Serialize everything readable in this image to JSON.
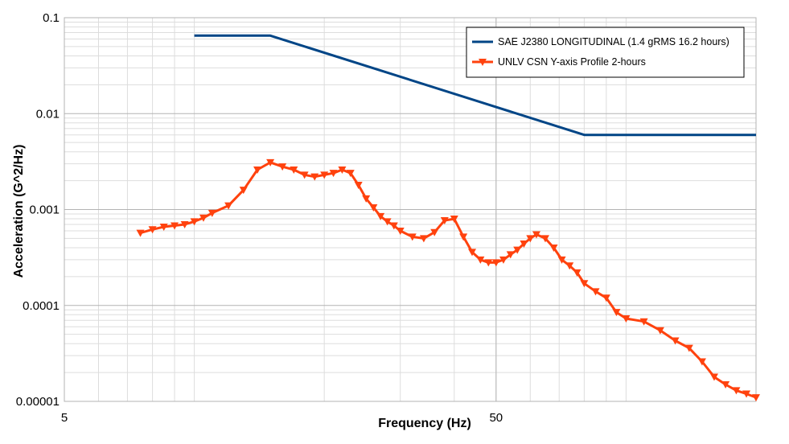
{
  "chart_data": {
    "type": "line",
    "xlabel": "Frequency (Hz)",
    "ylabel": "Acceleration (G^2/Hz)",
    "x_scale": "log",
    "y_scale": "log",
    "xlim": [
      5,
      200
    ],
    "ylim": [
      1e-05,
      0.1
    ],
    "x_ticks": [
      {
        "value": 5,
        "label": "5"
      },
      {
        "value": 50,
        "label": "50"
      }
    ],
    "y_ticks": [
      {
        "value": 0.1,
        "label": "0.1"
      },
      {
        "value": 0.01,
        "label": "0.01"
      },
      {
        "value": 0.001,
        "label": "0.001"
      },
      {
        "value": 0.0001,
        "label": "0.0001"
      },
      {
        "value": 1e-05,
        "label": "0.00001"
      }
    ],
    "grid": true,
    "legend_position": "top-right",
    "series": [
      {
        "name": "SAE J2380 LONGITUDINAL (1.4 gRMS 16.2 hours)",
        "color": "#004586",
        "marker": "none",
        "x": [
          10,
          15,
          80,
          200
        ],
        "y": [
          0.065,
          0.065,
          0.006,
          0.006
        ]
      },
      {
        "name": "UNLV CSN Y-axis Profile 2-hours",
        "color": "#ff420e",
        "marker": "triangle-down",
        "x": [
          7.5,
          8,
          8.5,
          9,
          9.5,
          10,
          10.5,
          11,
          12,
          13,
          14,
          15,
          16,
          17,
          18,
          19,
          20,
          21,
          22,
          23,
          24,
          25,
          26,
          27,
          28,
          29,
          30,
          32,
          34,
          36,
          38,
          40,
          42,
          44,
          46,
          48,
          50,
          52,
          54,
          56,
          58,
          60,
          62,
          65,
          68,
          71,
          74,
          77,
          80,
          85,
          90,
          95,
          100,
          110,
          120,
          130,
          140,
          150,
          160,
          170,
          180,
          190,
          200
        ],
        "y": [
          0.00057,
          0.00062,
          0.00066,
          0.00068,
          0.0007,
          0.00075,
          0.00082,
          0.00092,
          0.0011,
          0.0016,
          0.0026,
          0.0031,
          0.0028,
          0.0026,
          0.0023,
          0.0022,
          0.0023,
          0.0024,
          0.0026,
          0.0024,
          0.0018,
          0.0013,
          0.00105,
          0.00085,
          0.00075,
          0.00068,
          0.0006,
          0.00052,
          0.0005,
          0.00058,
          0.00077,
          0.0008,
          0.00052,
          0.00036,
          0.0003,
          0.00028,
          0.00028,
          0.0003,
          0.00034,
          0.00038,
          0.00044,
          0.0005,
          0.00055,
          0.0005,
          0.0004,
          0.0003,
          0.00026,
          0.00022,
          0.00017,
          0.00014,
          0.00012,
          8.5e-05,
          7.3e-05,
          6.8e-05,
          5.5e-05,
          4.3e-05,
          3.6e-05,
          2.6e-05,
          1.8e-05,
          1.5e-05,
          1.3e-05,
          1.2e-05,
          1.1e-05
        ]
      }
    ]
  }
}
